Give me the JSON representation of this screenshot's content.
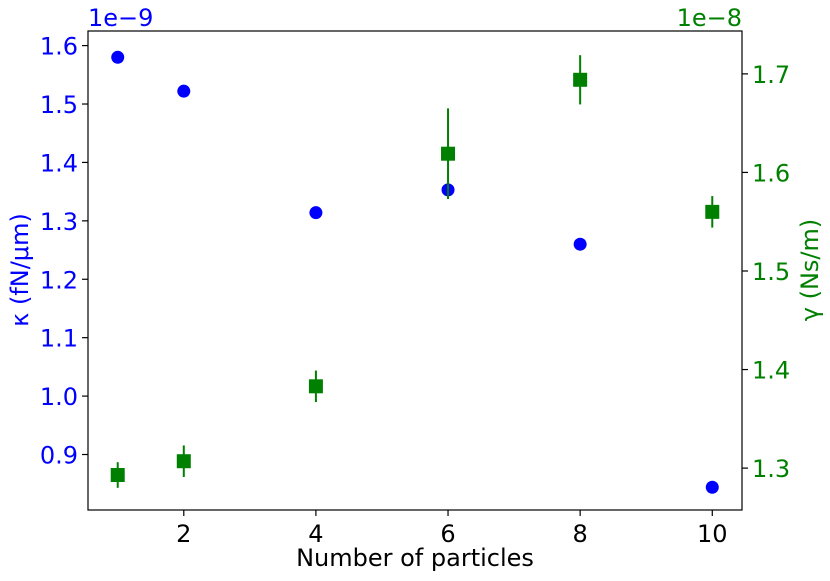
{
  "chart_data": {
    "type": "scatter",
    "xlabel": "Number of particles",
    "x_ticks": [
      "2",
      "4",
      "6",
      "8",
      "10"
    ],
    "xlim": [
      0.55,
      10.45
    ],
    "left_axis": {
      "label": "κ (fN/μm)",
      "offset_text": "1e−9",
      "color": "#0000ff",
      "ylim": [
        0.805,
        1.625
      ],
      "ticks": [
        "0.9",
        "1.0",
        "1.1",
        "1.2",
        "1.3",
        "1.4",
        "1.5",
        "1.6"
      ]
    },
    "right_axis": {
      "label": "γ (Ns/m)",
      "offset_text": "1e−8",
      "color": "#008000",
      "ylim": [
        1.2575,
        1.7435
      ],
      "ticks": [
        "1.3",
        "1.4",
        "1.5",
        "1.6",
        "1.7"
      ]
    },
    "series": [
      {
        "axis": "left",
        "marker": "circle",
        "color": "#0000ff",
        "x": [
          1,
          2,
          4,
          6,
          8,
          10
        ],
        "y": [
          1.58,
          1.522,
          1.314,
          1.353,
          1.26,
          0.844
        ],
        "yerr": [
          0.002,
          0.008,
          0.002,
          0.002,
          0.002,
          0.002
        ]
      },
      {
        "axis": "right",
        "marker": "square",
        "color": "#008000",
        "x": [
          1,
          2,
          4,
          6,
          8,
          10
        ],
        "y": [
          1.293,
          1.307,
          1.383,
          1.619,
          1.694,
          1.56
        ],
        "yerr": [
          0.013,
          0.016,
          0.016,
          0.046,
          0.025,
          0.016
        ]
      }
    ]
  }
}
